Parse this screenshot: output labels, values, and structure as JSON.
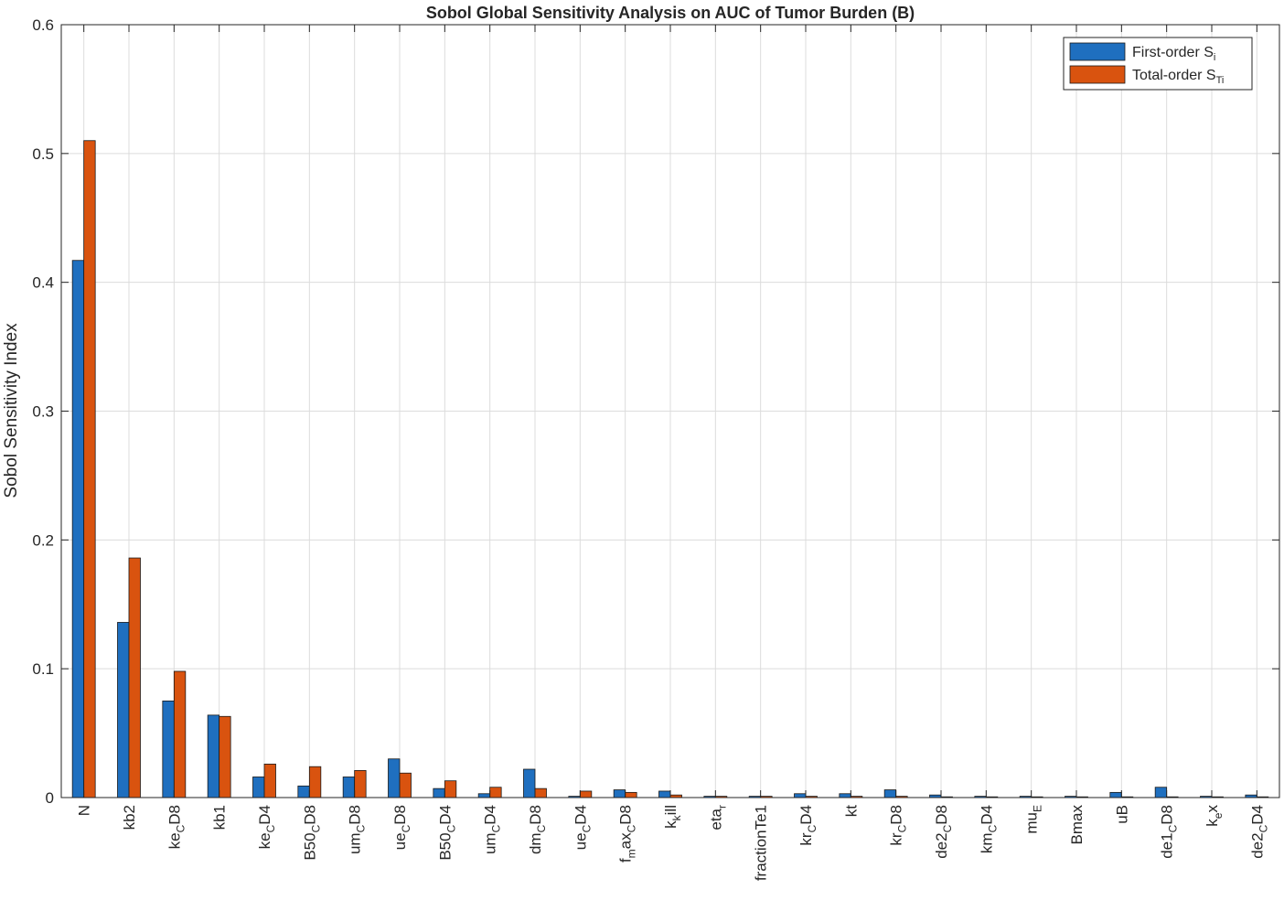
{
  "chart_data": {
    "type": "bar",
    "title": "Sobol Global Sensitivity Analysis on AUC of Tumor Burden (B)",
    "xlabel": "",
    "ylabel": "Sobol Sensitivity Index",
    "ylim": [
      0,
      0.6
    ],
    "yticks": [
      "0",
      "0.1",
      "0.2",
      "0.3",
      "0.4",
      "0.5",
      "0.6"
    ],
    "grid": true,
    "legend_position": "top-right",
    "categories": [
      {
        "base": "N",
        "sub": ""
      },
      {
        "base": "kb2",
        "sub": ""
      },
      {
        "base": "ke",
        "sub": "C",
        "tail": "D8"
      },
      {
        "base": "kb1",
        "sub": ""
      },
      {
        "base": "ke",
        "sub": "C",
        "tail": "D4"
      },
      {
        "base": "B50",
        "sub": "C",
        "tail": "D8"
      },
      {
        "base": "um",
        "sub": "C",
        "tail": "D8"
      },
      {
        "base": "ue",
        "sub": "C",
        "tail": "D8"
      },
      {
        "base": "B50",
        "sub": "C",
        "tail": "D4"
      },
      {
        "base": "um",
        "sub": "C",
        "tail": "D4"
      },
      {
        "base": "dm",
        "sub": "C",
        "tail": "D8"
      },
      {
        "base": "ue",
        "sub": "C",
        "tail": "D4"
      },
      {
        "base": "f",
        "sub": "m",
        "tail": "ax",
        "sub2": "C",
        "tail2": "D8"
      },
      {
        "base": "k",
        "sub": "k",
        "tail": "ill"
      },
      {
        "base": "eta",
        "sub": "r",
        "tail": ""
      },
      {
        "base": "fractionTe1",
        "sub": ""
      },
      {
        "base": "kr",
        "sub": "C",
        "tail": "D4"
      },
      {
        "base": "kt",
        "sub": ""
      },
      {
        "base": "kr",
        "sub": "C",
        "tail": "D8"
      },
      {
        "base": "de2",
        "sub": "C",
        "tail": "D8"
      },
      {
        "base": "km",
        "sub": "C",
        "tail": "D4"
      },
      {
        "base": "mu",
        "sub": "E",
        "tail": ""
      },
      {
        "base": "Bmax",
        "sub": ""
      },
      {
        "base": "uB",
        "sub": ""
      },
      {
        "base": "de1",
        "sub": "C",
        "tail": "D8"
      },
      {
        "base": "k",
        "sub": "e",
        "tail": "x"
      },
      {
        "base": "de2",
        "sub": "C",
        "tail": "D4"
      }
    ],
    "series": [
      {
        "name": "First-order",
        "name_symbol": "S",
        "name_sub": "i",
        "color": "#1f6fbf",
        "values": [
          0.417,
          0.136,
          0.075,
          0.064,
          0.016,
          0.009,
          0.016,
          0.03,
          0.007,
          0.003,
          0.022,
          0.001,
          0.006,
          0.005,
          0.001,
          0.001,
          0.003,
          0.003,
          0.006,
          0.002,
          0.001,
          0.001,
          0.001,
          0.004,
          0.008,
          0.001,
          0.002
        ]
      },
      {
        "name": "Total-order",
        "name_symbol": "S",
        "name_sub": "Ti",
        "color": "#d9530f",
        "values": [
          0.51,
          0.186,
          0.098,
          0.063,
          0.026,
          0.024,
          0.021,
          0.019,
          0.013,
          0.008,
          0.007,
          0.005,
          0.004,
          0.002,
          0.001,
          0.001,
          0.001,
          0.001,
          0.001,
          0.0005,
          0.0004,
          0.0003,
          0.0002,
          0.0002,
          0.0002,
          0.0001,
          0.0001
        ]
      }
    ]
  }
}
